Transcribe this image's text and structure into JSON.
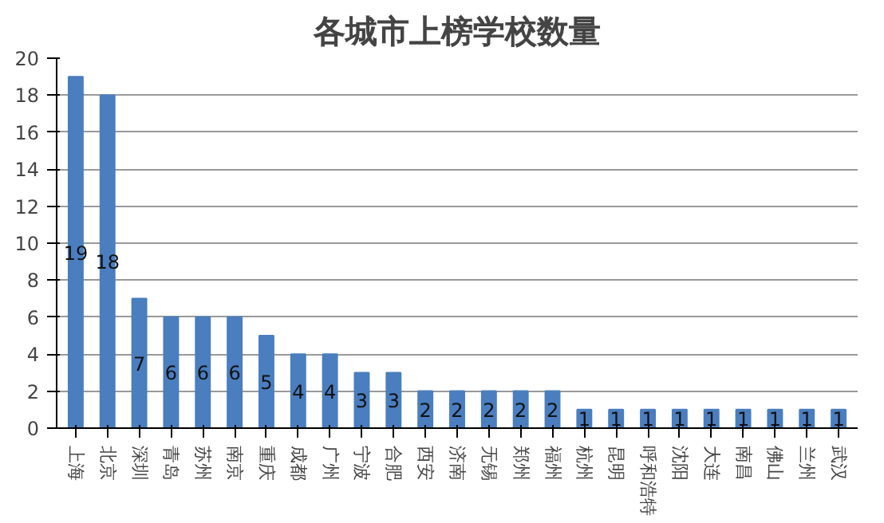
{
  "chart_data": {
    "type": "bar",
    "title": "各城市上榜学校数量",
    "categories": [
      "上海",
      "北京",
      "深圳",
      "青岛",
      "苏州",
      "南京",
      "重庆",
      "成都",
      "广州",
      "宁波",
      "合肥",
      "西安",
      "济南",
      "无锡",
      "郑州",
      "福州",
      "杭州",
      "昆明",
      "呼和浩特",
      "沈阳",
      "大连",
      "南昌",
      "佛山",
      "兰州",
      "武汉"
    ],
    "values": [
      19,
      18,
      7,
      6,
      6,
      6,
      5,
      4,
      4,
      3,
      3,
      2,
      2,
      2,
      2,
      2,
      1,
      1,
      1,
      1,
      1,
      1,
      1,
      1,
      1
    ],
    "color": "#4a7ebf",
    "ylim": [
      0,
      20
    ],
    "yticks": [
      0,
      2,
      4,
      6,
      8,
      10,
      12,
      14,
      16,
      18,
      20
    ],
    "grid": "y",
    "data_labels": true
  }
}
